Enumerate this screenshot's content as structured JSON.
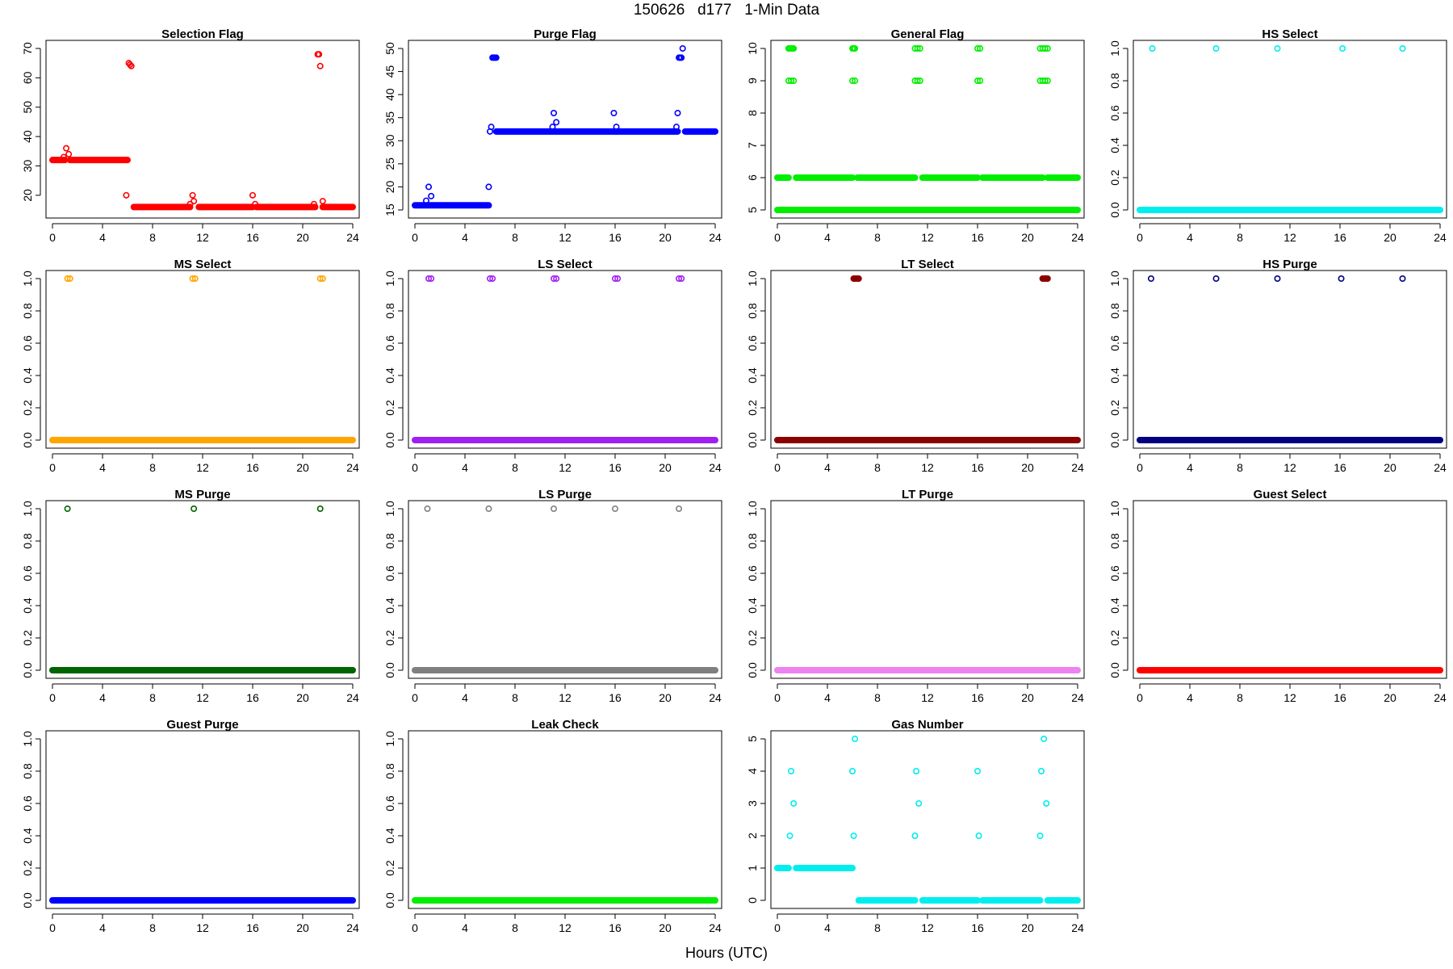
{
  "title": "150626   d177   1-Min Data",
  "xlabel": "Hours (UTC)",
  "chart_data": [
    {
      "type": "scatter",
      "title": "Selection Flag",
      "color": "#ff0000",
      "xlim": [
        0,
        24
      ],
      "ylim": [
        15,
        70
      ],
      "x_ticks": [
        0,
        4,
        8,
        12,
        16,
        20,
        24
      ],
      "y_ticks": [
        20,
        30,
        40,
        50,
        60,
        70
      ],
      "runs": [
        [
          0,
          1.0,
          32
        ],
        [
          1.4,
          6.0,
          32
        ],
        [
          6.5,
          11.0,
          16
        ],
        [
          11.7,
          16.0,
          16
        ],
        [
          16.3,
          21.0,
          16
        ],
        [
          21.6,
          24,
          16
        ]
      ],
      "points": [
        [
          0.9,
          33
        ],
        [
          1.1,
          36
        ],
        [
          1.3,
          34
        ],
        [
          5.9,
          20
        ],
        [
          6.1,
          65
        ],
        [
          6.2,
          64.5
        ],
        [
          6.3,
          64
        ],
        [
          11.0,
          17
        ],
        [
          11.2,
          20
        ],
        [
          11.3,
          18
        ],
        [
          16.0,
          20
        ],
        [
          16.2,
          17
        ],
        [
          20.9,
          17
        ],
        [
          21.2,
          68
        ],
        [
          21.3,
          68
        ],
        [
          21.4,
          64
        ],
        [
          21.6,
          18
        ]
      ],
      "hollow": true
    },
    {
      "type": "scatter",
      "title": "Purge Flag",
      "color": "#0000ff",
      "xlim": [
        0,
        24
      ],
      "ylim": [
        15,
        50
      ],
      "x_ticks": [
        0,
        4,
        8,
        12,
        16,
        20,
        24
      ],
      "y_ticks": [
        15,
        20,
        25,
        30,
        35,
        40,
        45,
        50
      ],
      "runs": [
        [
          0,
          5.9,
          16
        ],
        [
          6.5,
          21.0,
          32
        ],
        [
          21.6,
          24,
          32
        ]
      ],
      "points": [
        [
          0.9,
          17
        ],
        [
          1.1,
          20
        ],
        [
          1.3,
          18
        ],
        [
          5.9,
          20
        ],
        [
          6.0,
          32
        ],
        [
          6.1,
          33
        ],
        [
          6.2,
          48
        ],
        [
          6.3,
          48
        ],
        [
          6.4,
          48
        ],
        [
          6.5,
          48
        ],
        [
          11.0,
          33
        ],
        [
          11.1,
          36
        ],
        [
          11.3,
          34
        ],
        [
          15.9,
          36
        ],
        [
          16.1,
          33
        ],
        [
          20.9,
          33
        ],
        [
          21.0,
          36
        ],
        [
          21.1,
          48
        ],
        [
          21.2,
          48
        ],
        [
          21.3,
          48
        ],
        [
          21.4,
          50
        ]
      ],
      "hollow": true
    },
    {
      "type": "scatter",
      "title": "General Flag",
      "color": "#00ee00",
      "xlim": [
        0,
        24
      ],
      "ylim": [
        5,
        10
      ],
      "x_ticks": [
        0,
        4,
        8,
        12,
        16,
        20,
        24
      ],
      "y_ticks": [
        5,
        6,
        7,
        8,
        9,
        10
      ],
      "runs": [
        [
          0,
          0.9,
          6
        ],
        [
          1.5,
          6.0,
          6
        ],
        [
          6.4,
          11.0,
          6
        ],
        [
          11.6,
          16.0,
          6
        ],
        [
          16.4,
          21.2,
          6
        ],
        [
          21.6,
          24,
          6
        ],
        [
          0,
          24,
          5
        ]
      ],
      "points": [
        [
          0.9,
          10
        ],
        [
          1.0,
          10
        ],
        [
          1.1,
          10
        ],
        [
          1.2,
          10
        ],
        [
          1.3,
          10
        ],
        [
          0.9,
          9
        ],
        [
          1.1,
          9
        ],
        [
          1.3,
          9
        ],
        [
          6.0,
          10
        ],
        [
          6.1,
          10
        ],
        [
          6.2,
          10
        ],
        [
          6.0,
          9
        ],
        [
          6.2,
          9
        ],
        [
          11.0,
          10
        ],
        [
          11.2,
          10
        ],
        [
          11.4,
          10
        ],
        [
          11.0,
          9
        ],
        [
          11.2,
          9
        ],
        [
          11.4,
          9
        ],
        [
          16.0,
          10
        ],
        [
          16.2,
          10
        ],
        [
          16.0,
          9
        ],
        [
          16.2,
          9
        ],
        [
          21.0,
          10
        ],
        [
          21.2,
          10
        ],
        [
          21.4,
          10
        ],
        [
          21.6,
          10
        ],
        [
          21.0,
          9
        ],
        [
          21.2,
          9
        ],
        [
          21.4,
          9
        ],
        [
          21.6,
          9
        ]
      ],
      "hollow": true
    },
    {
      "type": "scatter",
      "title": "HS Select",
      "color": "#00eeee",
      "xlim": [
        0,
        24
      ],
      "ylim": [
        0,
        1
      ],
      "x_ticks": [
        0,
        4,
        8,
        12,
        16,
        20,
        24
      ],
      "y_ticks": [
        0.0,
        0.2,
        0.4,
        0.6,
        0.8,
        1.0
      ],
      "runs": [
        [
          0,
          24,
          0
        ]
      ],
      "points": [
        [
          1.0,
          1
        ],
        [
          6.1,
          1
        ],
        [
          11.0,
          1
        ],
        [
          16.2,
          1
        ],
        [
          21.0,
          1
        ]
      ],
      "hollow": true
    },
    {
      "type": "scatter",
      "title": "MS Select",
      "color": "#ffa500",
      "xlim": [
        0,
        24
      ],
      "ylim": [
        0,
        1
      ],
      "x_ticks": [
        0,
        4,
        8,
        12,
        16,
        20,
        24
      ],
      "y_ticks": [
        0.0,
        0.2,
        0.4,
        0.6,
        0.8,
        1.0
      ],
      "runs": [
        [
          0,
          24,
          0
        ]
      ],
      "points": [
        [
          1.2,
          1
        ],
        [
          1.4,
          1
        ],
        [
          11.2,
          1
        ],
        [
          11.4,
          1
        ],
        [
          21.4,
          1
        ],
        [
          21.6,
          1
        ]
      ],
      "hollow": true
    },
    {
      "type": "scatter",
      "title": "LS Select",
      "color": "#a020f0",
      "xlim": [
        0,
        24
      ],
      "ylim": [
        0,
        1
      ],
      "x_ticks": [
        0,
        4,
        8,
        12,
        16,
        20,
        24
      ],
      "y_ticks": [
        0.0,
        0.2,
        0.4,
        0.6,
        0.8,
        1.0
      ],
      "runs": [
        [
          0,
          24,
          0
        ]
      ],
      "points": [
        [
          1.1,
          1
        ],
        [
          1.3,
          1
        ],
        [
          6.0,
          1
        ],
        [
          6.2,
          1
        ],
        [
          11.1,
          1
        ],
        [
          11.3,
          1
        ],
        [
          16.0,
          1
        ],
        [
          16.2,
          1
        ],
        [
          21.1,
          1
        ],
        [
          21.3,
          1
        ]
      ],
      "hollow": true
    },
    {
      "type": "scatter",
      "title": "LT Select",
      "color": "#8b0000",
      "xlim": [
        0,
        24
      ],
      "ylim": [
        0,
        1
      ],
      "x_ticks": [
        0,
        4,
        8,
        12,
        16,
        20,
        24
      ],
      "y_ticks": [
        0.0,
        0.2,
        0.4,
        0.6,
        0.8,
        1.0
      ],
      "runs": [
        [
          0,
          24,
          0
        ]
      ],
      "points": [
        [
          6.1,
          1
        ],
        [
          6.2,
          1
        ],
        [
          6.3,
          1
        ],
        [
          6.4,
          1
        ],
        [
          6.5,
          1
        ],
        [
          21.2,
          1
        ],
        [
          21.3,
          1
        ],
        [
          21.4,
          1
        ],
        [
          21.5,
          1
        ],
        [
          21.6,
          1
        ]
      ],
      "hollow": false
    },
    {
      "type": "scatter",
      "title": "HS Purge",
      "color": "#000080",
      "xlim": [
        0,
        24
      ],
      "ylim": [
        0,
        1
      ],
      "x_ticks": [
        0,
        4,
        8,
        12,
        16,
        20,
        24
      ],
      "y_ticks": [
        0.0,
        0.2,
        0.4,
        0.6,
        0.8,
        1.0
      ],
      "runs": [
        [
          0,
          24,
          0
        ]
      ],
      "points": [
        [
          0.9,
          1
        ],
        [
          6.1,
          1
        ],
        [
          11.0,
          1
        ],
        [
          16.1,
          1
        ],
        [
          21.0,
          1
        ]
      ],
      "hollow": true
    },
    {
      "type": "scatter",
      "title": "MS Purge",
      "color": "#006400",
      "xlim": [
        0,
        24
      ],
      "ylim": [
        0,
        1
      ],
      "x_ticks": [
        0,
        4,
        8,
        12,
        16,
        20,
        24
      ],
      "y_ticks": [
        0.0,
        0.2,
        0.4,
        0.6,
        0.8,
        1.0
      ],
      "runs": [
        [
          0,
          24,
          0
        ]
      ],
      "points": [
        [
          1.2,
          1
        ],
        [
          11.3,
          1
        ],
        [
          21.4,
          1
        ]
      ],
      "hollow": true
    },
    {
      "type": "scatter",
      "title": "LS Purge",
      "color": "#808080",
      "xlim": [
        0,
        24
      ],
      "ylim": [
        0,
        1
      ],
      "x_ticks": [
        0,
        4,
        8,
        12,
        16,
        20,
        24
      ],
      "y_ticks": [
        0.0,
        0.2,
        0.4,
        0.6,
        0.8,
        1.0
      ],
      "runs": [
        [
          0,
          24,
          0
        ]
      ],
      "points": [
        [
          1.0,
          1
        ],
        [
          5.9,
          1
        ],
        [
          11.1,
          1
        ],
        [
          16.0,
          1
        ],
        [
          21.1,
          1
        ]
      ],
      "hollow": true
    },
    {
      "type": "scatter",
      "title": "LT Purge",
      "color": "#ee82ee",
      "xlim": [
        0,
        24
      ],
      "ylim": [
        0,
        1
      ],
      "x_ticks": [
        0,
        4,
        8,
        12,
        16,
        20,
        24
      ],
      "y_ticks": [
        0.0,
        0.2,
        0.4,
        0.6,
        0.8,
        1.0
      ],
      "runs": [
        [
          0,
          24,
          0
        ]
      ],
      "points": [],
      "hollow": true
    },
    {
      "type": "scatter",
      "title": "Guest Select",
      "color": "#ff0000",
      "xlim": [
        0,
        24
      ],
      "ylim": [
        0,
        1
      ],
      "x_ticks": [
        0,
        4,
        8,
        12,
        16,
        20,
        24
      ],
      "y_ticks": [
        0.0,
        0.2,
        0.4,
        0.6,
        0.8,
        1.0
      ],
      "runs": [
        [
          0,
          24,
          0
        ]
      ],
      "points": [],
      "hollow": true
    },
    {
      "type": "scatter",
      "title": "Guest Purge",
      "color": "#0000ff",
      "xlim": [
        0,
        24
      ],
      "ylim": [
        0,
        1
      ],
      "x_ticks": [
        0,
        4,
        8,
        12,
        16,
        20,
        24
      ],
      "y_ticks": [
        0.0,
        0.2,
        0.4,
        0.6,
        0.8,
        1.0
      ],
      "runs": [
        [
          0,
          24,
          0
        ]
      ],
      "points": [],
      "hollow": true
    },
    {
      "type": "scatter",
      "title": "Leak Check",
      "color": "#00ee00",
      "xlim": [
        0,
        24
      ],
      "ylim": [
        0,
        1
      ],
      "x_ticks": [
        0,
        4,
        8,
        12,
        16,
        20,
        24
      ],
      "y_ticks": [
        0.0,
        0.2,
        0.4,
        0.6,
        0.8,
        1.0
      ],
      "runs": [
        [
          0,
          24,
          0
        ]
      ],
      "points": [],
      "hollow": true
    },
    {
      "type": "scatter",
      "title": "Gas Number",
      "color": "#00eeee",
      "xlim": [
        0,
        24
      ],
      "ylim": [
        0,
        5
      ],
      "x_ticks": [
        0,
        4,
        8,
        12,
        16,
        20,
        24
      ],
      "y_ticks": [
        0,
        1,
        2,
        3,
        4,
        5
      ],
      "runs": [
        [
          0,
          0.9,
          1
        ],
        [
          1.5,
          6.0,
          1
        ],
        [
          6.5,
          11.0,
          0
        ],
        [
          11.6,
          16.0,
          0
        ],
        [
          16.4,
          21.0,
          0
        ],
        [
          21.6,
          24,
          0
        ]
      ],
      "points": [
        [
          1.0,
          2
        ],
        [
          1.1,
          4
        ],
        [
          1.3,
          3
        ],
        [
          6.0,
          4
        ],
        [
          6.1,
          2
        ],
        [
          6.2,
          5
        ],
        [
          11.0,
          2
        ],
        [
          11.1,
          4
        ],
        [
          11.3,
          3
        ],
        [
          16.0,
          4
        ],
        [
          16.1,
          2
        ],
        [
          21.0,
          2
        ],
        [
          21.1,
          4
        ],
        [
          21.3,
          5
        ],
        [
          21.5,
          3
        ]
      ],
      "hollow": true
    }
  ]
}
